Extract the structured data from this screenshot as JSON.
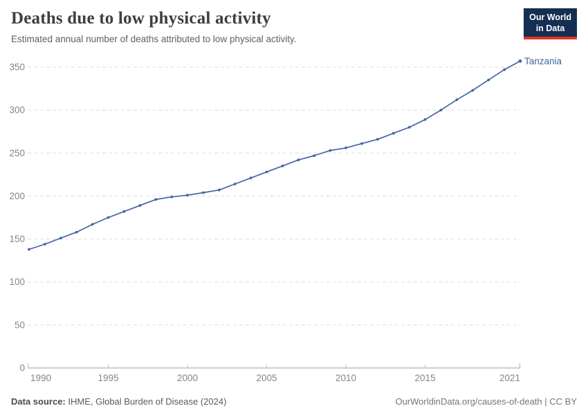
{
  "header": {
    "title": "Deaths due to low physical activity",
    "subtitle": "Estimated annual number of deaths attributed to low physical activity.",
    "logo": {
      "line1": "Our World",
      "line2": "in Data"
    }
  },
  "chart_data": {
    "type": "line",
    "title": "Deaths due to low physical activity",
    "subtitle": "Estimated annual number of deaths attributed to low physical activity.",
    "x": [
      1990,
      1991,
      1992,
      1993,
      1994,
      1995,
      1996,
      1997,
      1998,
      1999,
      2000,
      2001,
      2002,
      2003,
      2004,
      2005,
      2006,
      2007,
      2008,
      2009,
      2010,
      2011,
      2012,
      2013,
      2014,
      2015,
      2016,
      2017,
      2018,
      2019,
      2020,
      2021
    ],
    "series": [
      {
        "name": "Tanzania",
        "color": "#4165a0",
        "values": [
          138,
          144,
          151,
          158,
          167,
          175,
          182,
          189,
          196,
          199,
          201,
          204,
          207,
          214,
          221,
          228,
          235,
          242,
          247,
          253,
          256,
          261,
          266,
          273,
          280,
          289,
          300,
          312,
          323,
          335,
          347,
          357
        ]
      }
    ],
    "x_ticks": [
      1990,
      1995,
      2000,
      2005,
      2010,
      2015,
      2021
    ],
    "y_ticks": [
      0,
      50,
      100,
      150,
      200,
      250,
      300,
      350
    ],
    "xlim": [
      1990,
      2021
    ],
    "ylim": [
      0,
      350
    ],
    "grid": "horizontal-dashed",
    "legend": "line-end-label",
    "end_label": "Tanzania"
  },
  "footer": {
    "source_label": "Data source:",
    "source_text": " IHME, Global Burden of Disease (2024)",
    "link_text": "OurWorldinData.org/causes-of-death | CC BY"
  },
  "colors": {
    "series": "#4165a0",
    "logo_bg": "#152e52",
    "logo_accent": "#e0352b",
    "title": "#3b3f42",
    "subtitle": "#5f5f5f",
    "axis_label": "#858585",
    "gridline": "#dedede",
    "axis_line": "#9e9e9e",
    "tick": "#b5b5b5"
  }
}
